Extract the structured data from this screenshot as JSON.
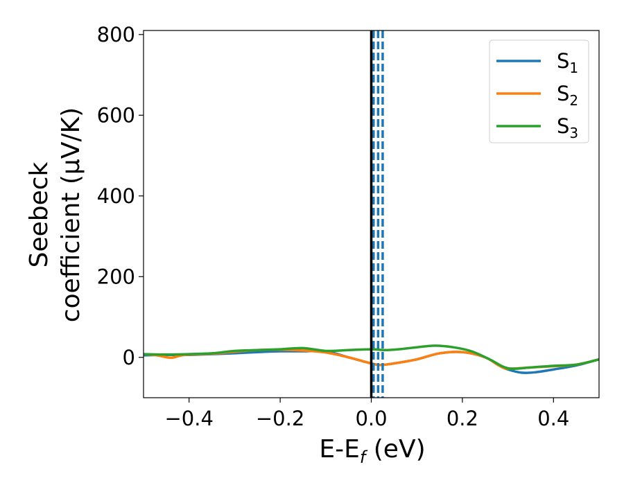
{
  "chart_data": {
    "type": "line",
    "xlabel_main": "E-E",
    "xlabel_sub": "f",
    "xlabel_unit": " (eV)",
    "ylabel_line1": "Seebeck",
    "ylabel_line2": "coefficient  (μV/K)",
    "xlim": [
      -0.5,
      0.5
    ],
    "ylim": [
      -100,
      810
    ],
    "xticks": [
      -0.4,
      -0.2,
      0.0,
      0.2,
      0.4
    ],
    "xtick_labels": [
      "−0.4",
      "−0.2",
      "0.0",
      "0.2",
      "0.4"
    ],
    "yticks": [
      0,
      200,
      400,
      600,
      800
    ],
    "ytick_labels": [
      "0",
      "200",
      "400",
      "600",
      "800"
    ],
    "grid": false,
    "legend_position": "top-right",
    "fermi_line": {
      "x": 0.0,
      "color": "#000000"
    },
    "dashed_lines": {
      "x": [
        0.005,
        0.015,
        0.025
      ],
      "color": "#1f77b4"
    },
    "series": [
      {
        "name": "S",
        "sub": "1",
        "color": "#1f77b4",
        "points": [
          [
            -0.5,
            5
          ],
          [
            -0.45,
            6
          ],
          [
            -0.4,
            6
          ],
          [
            -0.35,
            8
          ],
          [
            -0.3,
            10
          ],
          [
            -0.25,
            13
          ],
          [
            -0.2,
            15
          ],
          [
            -0.15,
            15
          ],
          [
            -0.1,
            15
          ],
          [
            -0.05,
            0
          ],
          [
            0.0,
            -15
          ],
          [
            0.02,
            -19
          ],
          [
            0.05,
            -15
          ],
          [
            0.1,
            -5
          ],
          [
            0.15,
            10
          ],
          [
            0.2,
            13
          ],
          [
            0.25,
            0
          ],
          [
            0.28,
            -20
          ],
          [
            0.3,
            -30
          ],
          [
            0.33,
            -38
          ],
          [
            0.36,
            -37
          ],
          [
            0.4,
            -30
          ],
          [
            0.45,
            -20
          ],
          [
            0.5,
            -5
          ]
        ]
      },
      {
        "name": "S",
        "sub": "2",
        "color": "#ff7f0e",
        "points": [
          [
            -0.5,
            8
          ],
          [
            -0.47,
            5
          ],
          [
            -0.44,
            -1
          ],
          [
            -0.41,
            6
          ],
          [
            -0.35,
            9
          ],
          [
            -0.3,
            14
          ],
          [
            -0.25,
            18
          ],
          [
            -0.2,
            19
          ],
          [
            -0.15,
            17
          ],
          [
            -0.1,
            12
          ],
          [
            -0.05,
            0
          ],
          [
            0.0,
            -15
          ],
          [
            0.02,
            -19
          ],
          [
            0.05,
            -15
          ],
          [
            0.1,
            -5
          ],
          [
            0.15,
            10
          ],
          [
            0.2,
            13
          ],
          [
            0.25,
            0
          ],
          [
            0.28,
            -20
          ],
          [
            0.3,
            -28
          ],
          [
            0.35,
            -25
          ],
          [
            0.4,
            -22
          ],
          [
            0.45,
            -18
          ],
          [
            0.5,
            -5
          ]
        ]
      },
      {
        "name": "S",
        "sub": "3",
        "color": "#2ca02c",
        "points": [
          [
            -0.5,
            8
          ],
          [
            -0.45,
            7
          ],
          [
            -0.4,
            8
          ],
          [
            -0.35,
            10
          ],
          [
            -0.3,
            16
          ],
          [
            -0.25,
            18
          ],
          [
            -0.2,
            20
          ],
          [
            -0.15,
            23
          ],
          [
            -0.1,
            16
          ],
          [
            -0.05,
            18
          ],
          [
            0.0,
            20
          ],
          [
            0.03,
            18
          ],
          [
            0.06,
            20
          ],
          [
            0.1,
            25
          ],
          [
            0.14,
            29
          ],
          [
            0.18,
            25
          ],
          [
            0.22,
            15
          ],
          [
            0.26,
            -5
          ],
          [
            0.3,
            -27
          ],
          [
            0.35,
            -25
          ],
          [
            0.4,
            -21
          ],
          [
            0.45,
            -18
          ],
          [
            0.5,
            -5
          ]
        ]
      }
    ]
  }
}
